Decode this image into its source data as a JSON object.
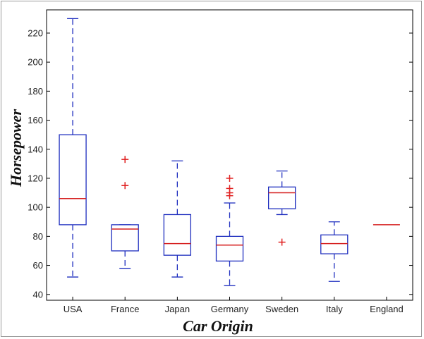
{
  "chart_data": {
    "type": "boxplot",
    "xlabel": "Car Origin",
    "ylabel": "Horsepower",
    "ylim": [
      36,
      236
    ],
    "yticks": [
      40,
      60,
      80,
      100,
      120,
      140,
      160,
      180,
      200,
      220
    ],
    "grid": false,
    "colors": {
      "box": "#1f2fbf",
      "median": "#d62020",
      "outlier": "#e02020",
      "axis": "#000000"
    },
    "categories": [
      "USA",
      "France",
      "Japan",
      "Germany",
      "Sweden",
      "Italy",
      "England"
    ],
    "boxes": [
      {
        "category": "USA",
        "whisker_low": 52,
        "q1": 88,
        "median": 106,
        "q3": 150,
        "whisker_high": 230,
        "outliers": []
      },
      {
        "category": "France",
        "whisker_low": 58,
        "q1": 70,
        "median": 85,
        "q3": 88,
        "whisker_high": 88,
        "outliers": [
          115,
          133
        ]
      },
      {
        "category": "Japan",
        "whisker_low": 52,
        "q1": 67,
        "median": 75,
        "q3": 95,
        "whisker_high": 132,
        "outliers": []
      },
      {
        "category": "Germany",
        "whisker_low": 46,
        "q1": 63,
        "median": 74,
        "q3": 80,
        "whisker_high": 103,
        "outliers": [
          108,
          110,
          113,
          120
        ]
      },
      {
        "category": "Sweden",
        "whisker_low": 95,
        "q1": 99,
        "median": 110,
        "q3": 114,
        "whisker_high": 125,
        "outliers": [
          76
        ]
      },
      {
        "category": "Italy",
        "whisker_low": 49,
        "q1": 68,
        "median": 75,
        "q3": 81,
        "whisker_high": 90,
        "outliers": []
      },
      {
        "category": "England",
        "whisker_low": 88,
        "q1": 88,
        "median": 88,
        "q3": 88,
        "whisker_high": 88,
        "outliers": []
      }
    ]
  }
}
